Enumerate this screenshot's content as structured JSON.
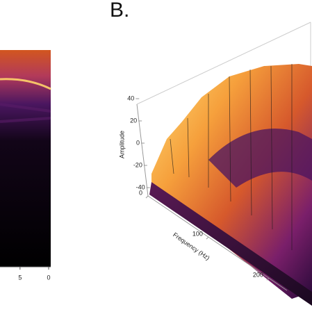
{
  "chart_data": [
    {
      "type": "heatmap",
      "xlim": [
        8.5,
        0
      ],
      "xticks": [
        5,
        0
      ]
    },
    {
      "type": "surface3d",
      "panel_label": "B.",
      "z_label": "Amplitude",
      "zlim": [
        -40,
        40
      ],
      "zticks": [
        40,
        20,
        0,
        -20,
        -40
      ],
      "x_label": "Frequency (Hz)",
      "xlim": [
        0,
        230
      ],
      "xticks": [
        0,
        100,
        200
      ]
    }
  ]
}
